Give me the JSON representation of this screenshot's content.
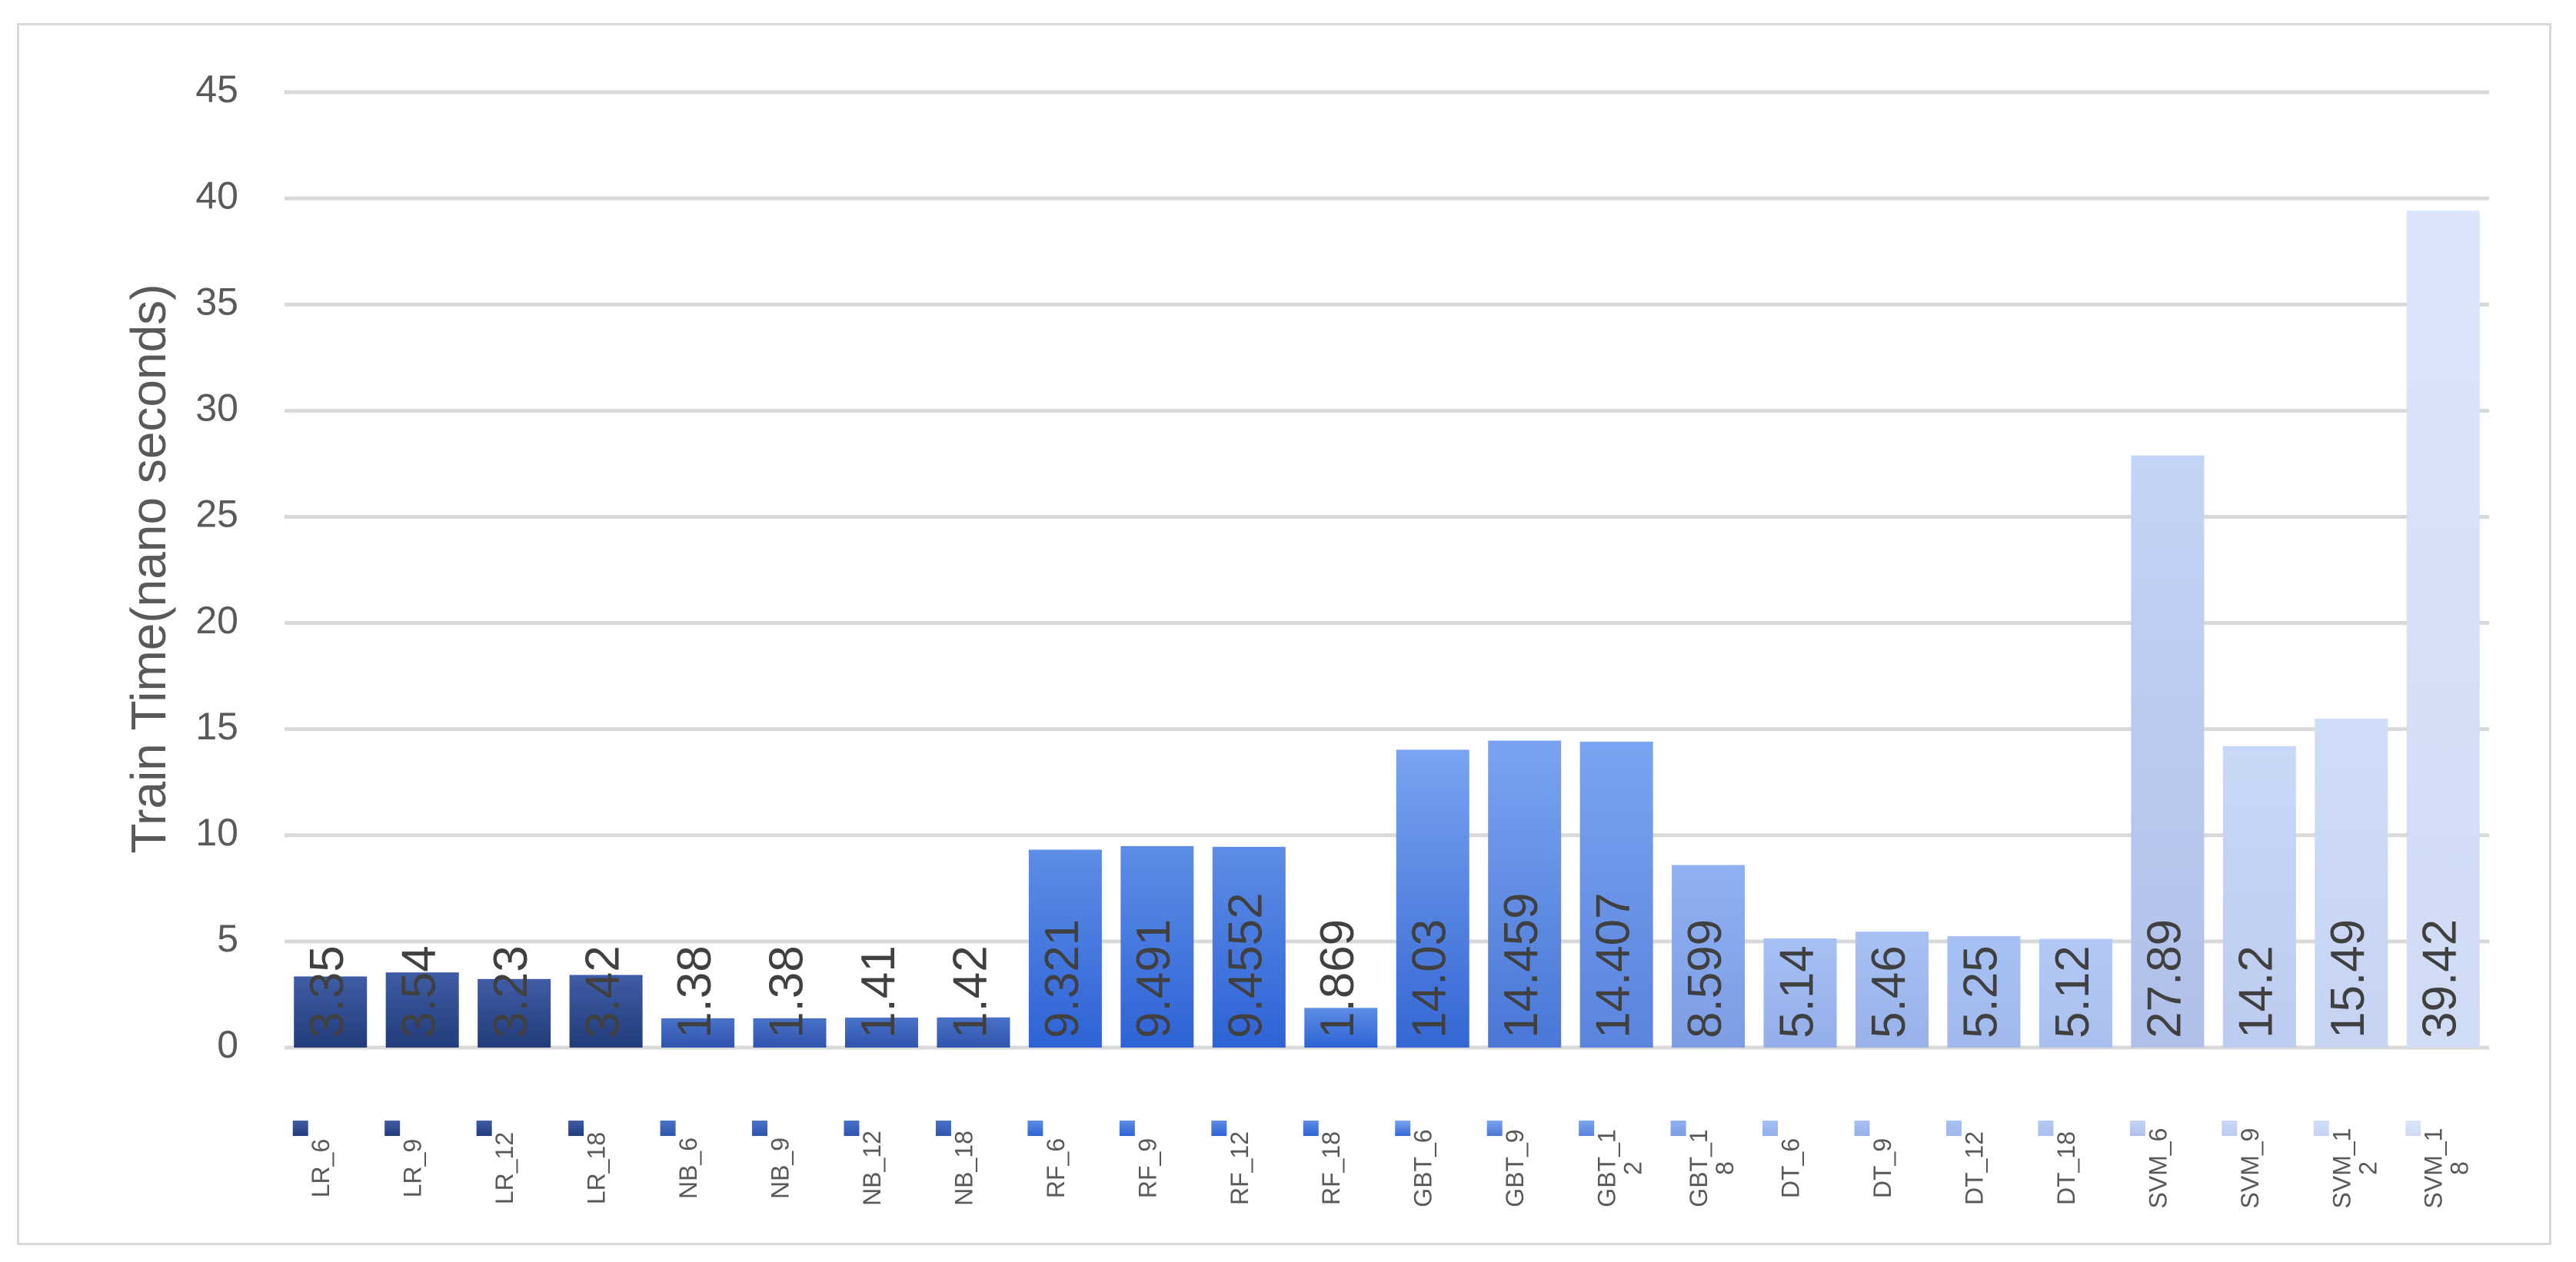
{
  "chart_data": {
    "type": "bar",
    "title": "",
    "xlabel": "",
    "ylabel": "Train Time(nano seconds)",
    "ylim": [
      0,
      45
    ],
    "yticks": [
      0,
      5,
      10,
      15,
      20,
      25,
      30,
      35,
      40,
      45
    ],
    "grid": true,
    "legend_position": "bottom",
    "data_labels": true,
    "categories": [
      "LR_6",
      "LR_9",
      "LR_12",
      "LR_18",
      "NB_6",
      "NB_9",
      "NB_12",
      "NB_18",
      "RF_6",
      "RF_9",
      "RF_12",
      "RF_18",
      "GBT_6",
      "GBT_9",
      "GBT_12",
      "GBT_18",
      "DT_6",
      "DT_9",
      "DT_12",
      "DT_18",
      "SVM_6",
      "SVM_9",
      "SVM_12",
      "SVM_18"
    ],
    "legend_labels": [
      [
        "LR_6"
      ],
      [
        "LR_9"
      ],
      [
        "LR_12"
      ],
      [
        "LR_18"
      ],
      [
        "NB_6"
      ],
      [
        "NB_9"
      ],
      [
        "NB_12"
      ],
      [
        "NB_18"
      ],
      [
        "RF_6"
      ],
      [
        "RF_9"
      ],
      [
        "RF_12"
      ],
      [
        "RF_18"
      ],
      [
        "GBT_6"
      ],
      [
        "GBT_9"
      ],
      [
        "GBT_1",
        "2"
      ],
      [
        "GBT_1",
        "8"
      ],
      [
        "DT_6"
      ],
      [
        "DT_9"
      ],
      [
        "DT_12"
      ],
      [
        "DT_18"
      ],
      [
        "SVM_6"
      ],
      [
        "SVM_9"
      ],
      [
        "SVM_1",
        "2"
      ],
      [
        "SVM_1",
        "8"
      ]
    ],
    "values": [
      3.35,
      3.54,
      3.23,
      3.42,
      1.38,
      1.38,
      1.41,
      1.42,
      9.321,
      9.491,
      9.4552,
      1.869,
      14.03,
      14.459,
      14.407,
      8.599,
      5.14,
      5.46,
      5.25,
      5.12,
      27.89,
      14.2,
      15.49,
      39.42
    ],
    "value_labels": [
      "3.35",
      "3.54",
      "3.23",
      "3.42",
      "1.38",
      "1.38",
      "1.41",
      "1.42",
      "9.321",
      "9.491",
      "9.4552",
      "1.869",
      "14.03",
      "14.459",
      "14.407",
      "8.599",
      "5.14",
      "5.46",
      "5.25",
      "5.12",
      "27.89",
      "14.2",
      "15.49",
      "39.42"
    ],
    "colors": {
      "bar_top": [
        "#3f5ca6",
        "#3f5ca6",
        "#3f5ca6",
        "#3f5ca6",
        "#4a72c8",
        "#4a72c8",
        "#4a72c8",
        "#4a72c8",
        "#5e8de6",
        "#5e8de6",
        "#5e8de6",
        "#5e8de6",
        "#7aa3f0",
        "#7aa3f0",
        "#7aa3f0",
        "#8fb1f2",
        "#a7c1f4",
        "#a7c1f4",
        "#a7c1f4",
        "#b3c9f4",
        "#c4d4f6",
        "#c9d8f7",
        "#d0ddf8",
        "#dbe5fa"
      ],
      "bar_bottom": [
        "#223c7a",
        "#223c7a",
        "#223c7a",
        "#223c7a",
        "#2f54ad",
        "#2f54ad",
        "#2f54ad",
        "#2f54ad",
        "#2e63d6",
        "#2e63d6",
        "#2e63d6",
        "#2e63d6",
        "#3567d4",
        "#4a77d8",
        "#5a84de",
        "#7c9ce4",
        "#93aeea",
        "#98b2ea",
        "#a1b8ec",
        "#aabfed",
        "#afbfe9",
        "#bccbef",
        "#c6d3f2",
        "#d0dbf4"
      ],
      "grid": "#d9d9d9",
      "axis_text": "#595959"
    }
  }
}
